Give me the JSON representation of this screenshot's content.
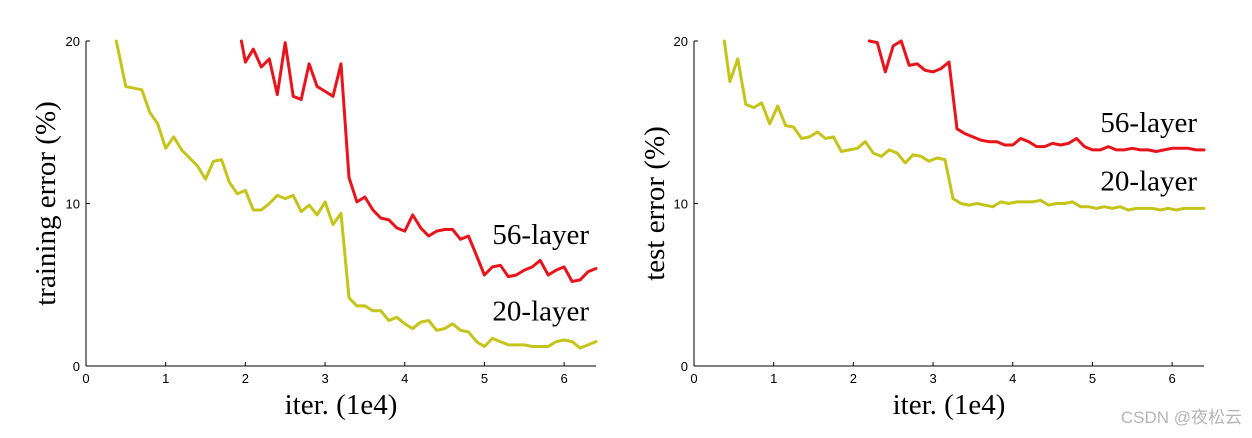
{
  "watermark": "CSDN @夜松云",
  "chart_data": [
    {
      "type": "line",
      "ylabel": "training error (%)",
      "xlabel": "iter. (1e4)",
      "xlim": [
        0,
        6.4
      ],
      "ylim": [
        0,
        20
      ],
      "xticks": [
        "0",
        "1",
        "2",
        "3",
        "4",
        "5",
        "6"
      ],
      "yticks": [
        "0",
        "10",
        "20"
      ],
      "grid": false,
      "series": [
        {
          "name": "56-layer",
          "color": "#e8141c",
          "label_at": [
            5.1,
            7.5
          ],
          "points": [
            [
              1.95,
              20.0
            ],
            [
              2.0,
              18.7
            ],
            [
              2.1,
              19.5
            ],
            [
              2.2,
              18.4
            ],
            [
              2.3,
              18.9
            ],
            [
              2.4,
              16.7
            ],
            [
              2.5,
              19.9
            ],
            [
              2.6,
              16.6
            ],
            [
              2.7,
              16.4
            ],
            [
              2.8,
              18.6
            ],
            [
              2.9,
              17.2
            ],
            [
              3.0,
              16.9
            ],
            [
              3.1,
              16.6
            ],
            [
              3.2,
              18.6
            ],
            [
              3.3,
              11.6
            ],
            [
              3.4,
              10.1
            ],
            [
              3.5,
              10.4
            ],
            [
              3.6,
              9.6
            ],
            [
              3.7,
              9.1
            ],
            [
              3.8,
              9.0
            ],
            [
              3.9,
              8.5
            ],
            [
              4.0,
              8.3
            ],
            [
              4.1,
              9.3
            ],
            [
              4.2,
              8.5
            ],
            [
              4.3,
              8.0
            ],
            [
              4.4,
              8.3
            ],
            [
              4.5,
              8.4
            ],
            [
              4.6,
              8.4
            ],
            [
              4.7,
              7.8
            ],
            [
              4.8,
              8.0
            ],
            [
              4.9,
              6.8
            ],
            [
              5.0,
              5.6
            ],
            [
              5.1,
              6.1
            ],
            [
              5.2,
              6.2
            ],
            [
              5.3,
              5.5
            ],
            [
              5.4,
              5.6
            ],
            [
              5.5,
              5.9
            ],
            [
              5.6,
              6.1
            ],
            [
              5.7,
              6.5
            ],
            [
              5.8,
              5.6
            ],
            [
              5.9,
              5.9
            ],
            [
              6.0,
              6.1
            ],
            [
              6.1,
              5.2
            ],
            [
              6.2,
              5.3
            ],
            [
              6.3,
              5.8
            ],
            [
              6.4,
              6.0
            ]
          ]
        },
        {
          "name": "20-layer",
          "color": "#c5c41b",
          "label_at": [
            5.1,
            2.8
          ],
          "points": [
            [
              0.38,
              20.0
            ],
            [
              0.5,
              17.2
            ],
            [
              0.7,
              17.0
            ],
            [
              0.8,
              15.6
            ],
            [
              0.9,
              14.9
            ],
            [
              1.0,
              13.4
            ],
            [
              1.1,
              14.1
            ],
            [
              1.2,
              13.3
            ],
            [
              1.3,
              12.8
            ],
            [
              1.4,
              12.3
            ],
            [
              1.5,
              11.5
            ],
            [
              1.6,
              12.6
            ],
            [
              1.7,
              12.7
            ],
            [
              1.8,
              11.3
            ],
            [
              1.9,
              10.6
            ],
            [
              2.0,
              10.8
            ],
            [
              2.1,
              9.6
            ],
            [
              2.2,
              9.6
            ],
            [
              2.3,
              10.0
            ],
            [
              2.4,
              10.5
            ],
            [
              2.5,
              10.3
            ],
            [
              2.6,
              10.5
            ],
            [
              2.7,
              9.5
            ],
            [
              2.8,
              9.9
            ],
            [
              2.9,
              9.3
            ],
            [
              3.0,
              10.1
            ],
            [
              3.1,
              8.7
            ],
            [
              3.2,
              9.4
            ],
            [
              3.3,
              4.2
            ],
            [
              3.4,
              3.7
            ],
            [
              3.5,
              3.7
            ],
            [
              3.6,
              3.4
            ],
            [
              3.7,
              3.4
            ],
            [
              3.8,
              2.8
            ],
            [
              3.9,
              3.0
            ],
            [
              4.0,
              2.6
            ],
            [
              4.1,
              2.3
            ],
            [
              4.2,
              2.7
            ],
            [
              4.3,
              2.8
            ],
            [
              4.4,
              2.2
            ],
            [
              4.5,
              2.3
            ],
            [
              4.6,
              2.6
            ],
            [
              4.7,
              2.2
            ],
            [
              4.8,
              2.1
            ],
            [
              4.9,
              1.5
            ],
            [
              5.0,
              1.2
            ],
            [
              5.1,
              1.7
            ],
            [
              5.2,
              1.5
            ],
            [
              5.3,
              1.3
            ],
            [
              5.4,
              1.3
            ],
            [
              5.5,
              1.3
            ],
            [
              5.6,
              1.2
            ],
            [
              5.7,
              1.2
            ],
            [
              5.8,
              1.2
            ],
            [
              5.9,
              1.5
            ],
            [
              6.0,
              1.6
            ],
            [
              6.1,
              1.5
            ],
            [
              6.2,
              1.1
            ],
            [
              6.3,
              1.3
            ],
            [
              6.4,
              1.5
            ]
          ]
        }
      ]
    },
    {
      "type": "line",
      "ylabel": "test error (%)",
      "xlabel": "iter. (1e4)",
      "xlim": [
        0,
        6.4
      ],
      "ylim": [
        0,
        20
      ],
      "xticks": [
        "0",
        "1",
        "2",
        "3",
        "4",
        "5",
        "6"
      ],
      "yticks": [
        "0",
        "10",
        "20"
      ],
      "grid": false,
      "series": [
        {
          "name": "56-layer",
          "color": "#e8141c",
          "label_at": [
            5.1,
            14.4
          ],
          "points": [
            [
              2.2,
              20.0
            ],
            [
              2.3,
              19.9
            ],
            [
              2.4,
              18.1
            ],
            [
              2.5,
              19.7
            ],
            [
              2.6,
              20.0
            ],
            [
              2.7,
              18.5
            ],
            [
              2.8,
              18.6
            ],
            [
              2.9,
              18.2
            ],
            [
              3.0,
              18.1
            ],
            [
              3.1,
              18.3
            ],
            [
              3.2,
              18.7
            ],
            [
              3.3,
              14.6
            ],
            [
              3.4,
              14.3
            ],
            [
              3.5,
              14.1
            ],
            [
              3.6,
              13.9
            ],
            [
              3.7,
              13.8
            ],
            [
              3.8,
              13.8
            ],
            [
              3.9,
              13.6
            ],
            [
              4.0,
              13.6
            ],
            [
              4.1,
              14.0
            ],
            [
              4.2,
              13.8
            ],
            [
              4.3,
              13.5
            ],
            [
              4.4,
              13.5
            ],
            [
              4.5,
              13.7
            ],
            [
              4.6,
              13.6
            ],
            [
              4.7,
              13.7
            ],
            [
              4.8,
              14.0
            ],
            [
              4.9,
              13.5
            ],
            [
              5.0,
              13.3
            ],
            [
              5.1,
              13.3
            ],
            [
              5.2,
              13.5
            ],
            [
              5.3,
              13.3
            ],
            [
              5.4,
              13.3
            ],
            [
              5.5,
              13.4
            ],
            [
              5.6,
              13.3
            ],
            [
              5.7,
              13.3
            ],
            [
              5.8,
              13.2
            ],
            [
              5.9,
              13.3
            ],
            [
              6.0,
              13.4
            ],
            [
              6.1,
              13.4
            ],
            [
              6.2,
              13.4
            ],
            [
              6.3,
              13.3
            ],
            [
              6.4,
              13.3
            ]
          ]
        },
        {
          "name": "20-layer",
          "color": "#c5c41b",
          "label_at": [
            5.1,
            10.8
          ],
          "points": [
            [
              0.38,
              20.0
            ],
            [
              0.45,
              17.5
            ],
            [
              0.55,
              18.9
            ],
            [
              0.65,
              16.1
            ],
            [
              0.75,
              15.9
            ],
            [
              0.85,
              16.2
            ],
            [
              0.95,
              14.9
            ],
            [
              1.05,
              16.0
            ],
            [
              1.15,
              14.8
            ],
            [
              1.25,
              14.7
            ],
            [
              1.35,
              14.0
            ],
            [
              1.45,
              14.1
            ],
            [
              1.55,
              14.4
            ],
            [
              1.65,
              14.0
            ],
            [
              1.75,
              14.1
            ],
            [
              1.85,
              13.2
            ],
            [
              1.95,
              13.3
            ],
            [
              2.05,
              13.4
            ],
            [
              2.15,
              13.8
            ],
            [
              2.25,
              13.1
            ],
            [
              2.35,
              12.9
            ],
            [
              2.45,
              13.3
            ],
            [
              2.55,
              13.1
            ],
            [
              2.65,
              12.5
            ],
            [
              2.75,
              13.0
            ],
            [
              2.85,
              12.9
            ],
            [
              2.95,
              12.6
            ],
            [
              3.05,
              12.8
            ],
            [
              3.15,
              12.7
            ],
            [
              3.25,
              10.3
            ],
            [
              3.35,
              10.0
            ],
            [
              3.45,
              9.9
            ],
            [
              3.55,
              10.0
            ],
            [
              3.65,
              9.9
            ],
            [
              3.75,
              9.8
            ],
            [
              3.85,
              10.1
            ],
            [
              3.95,
              10.0
            ],
            [
              4.05,
              10.1
            ],
            [
              4.15,
              10.1
            ],
            [
              4.25,
              10.1
            ],
            [
              4.35,
              10.2
            ],
            [
              4.45,
              9.9
            ],
            [
              4.55,
              10.0
            ],
            [
              4.65,
              10.0
            ],
            [
              4.75,
              10.1
            ],
            [
              4.85,
              9.8
            ],
            [
              4.95,
              9.8
            ],
            [
              5.05,
              9.7
            ],
            [
              5.15,
              9.8
            ],
            [
              5.25,
              9.7
            ],
            [
              5.35,
              9.8
            ],
            [
              5.45,
              9.6
            ],
            [
              5.55,
              9.7
            ],
            [
              5.65,
              9.7
            ],
            [
              5.75,
              9.7
            ],
            [
              5.85,
              9.6
            ],
            [
              5.95,
              9.7
            ],
            [
              6.05,
              9.6
            ],
            [
              6.15,
              9.7
            ],
            [
              6.25,
              9.7
            ],
            [
              6.4,
              9.7
            ]
          ]
        }
      ]
    }
  ]
}
